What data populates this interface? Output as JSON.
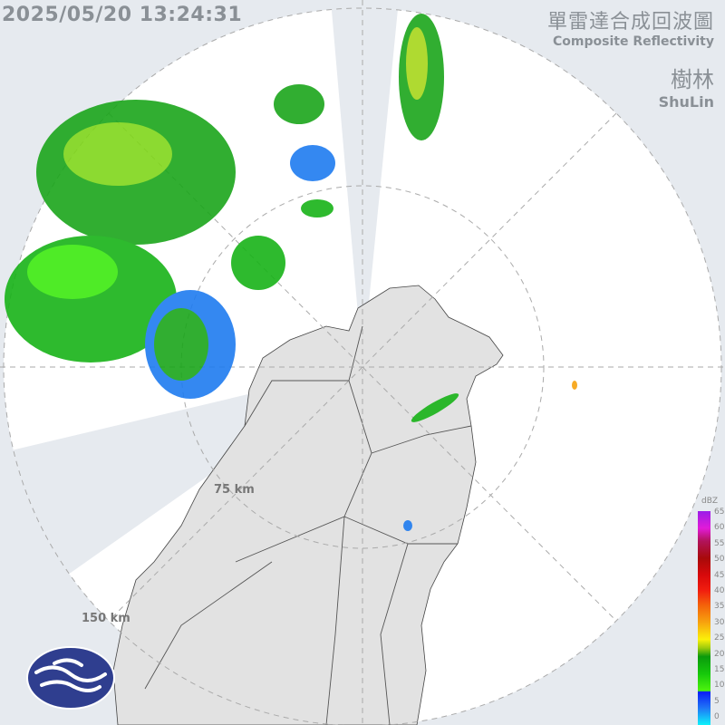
{
  "timestamp": "2025/05/20 13:24:31",
  "title": {
    "zh": "單雷達合成回波圖",
    "en": "Composite Reflectivity"
  },
  "site": {
    "zh": "樹林",
    "en": "ShuLin"
  },
  "range_rings": [
    {
      "label": "75 km"
    },
    {
      "label": "150 km"
    }
  ],
  "legend": {
    "unit": "dBZ",
    "ticks": [
      "65",
      "60",
      "55",
      "50",
      "45",
      "40",
      "35",
      "30",
      "25",
      "20",
      "15",
      "10",
      "5",
      "0"
    ]
  },
  "colors": {
    "background": "#e6eaef",
    "coverage": "#ffffff",
    "land": "#e2e2e2",
    "logo": "#2f3e8f"
  },
  "icons": {
    "logo": "cwa-logo"
  }
}
